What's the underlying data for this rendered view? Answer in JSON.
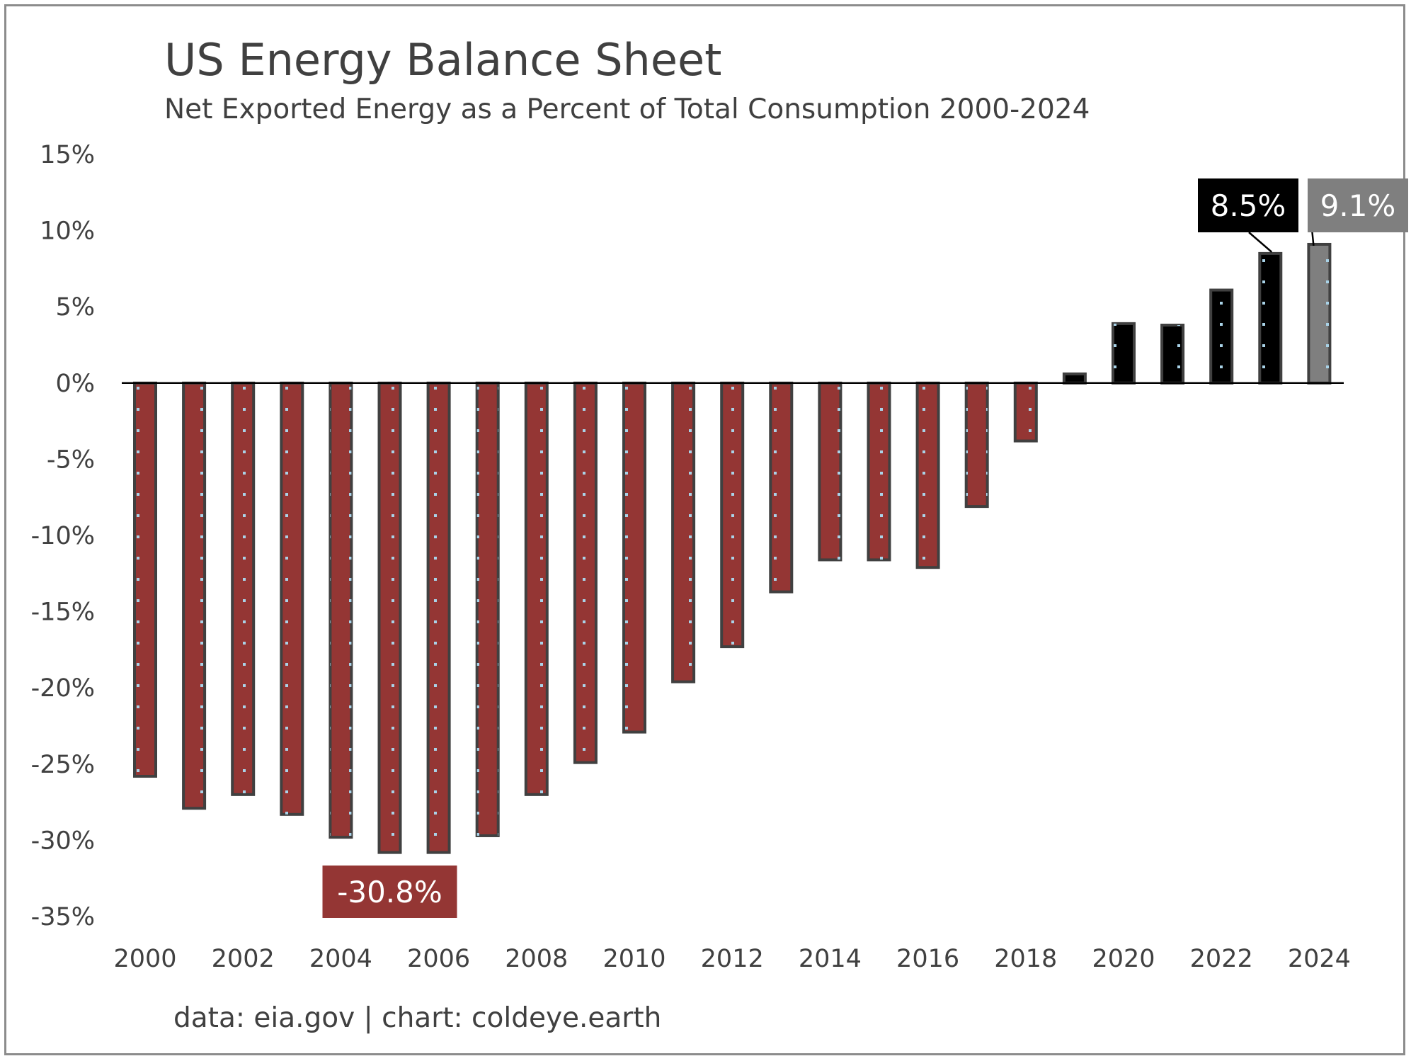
{
  "chart_data": {
    "type": "bar",
    "title": "US Energy Balance Sheet",
    "subtitle": "Net Exported Energy as a Percent of Total Consumption 2000-2024",
    "source": "data: eia.gov | chart: coldeye.earth",
    "categories": [
      "2000",
      "2001",
      "2002",
      "2003",
      "2004",
      "2005",
      "2006",
      "2007",
      "2008",
      "2009",
      "2010",
      "2011",
      "2012",
      "2013",
      "2014",
      "2015",
      "2016",
      "2017",
      "2018",
      "2019",
      "2020",
      "2021",
      "2022",
      "2023",
      "2024"
    ],
    "values": [
      -25.8,
      -27.9,
      -27.0,
      -28.3,
      -29.8,
      -30.8,
      -30.8,
      -29.7,
      -27.0,
      -24.9,
      -22.9,
      -19.6,
      -17.3,
      -13.7,
      -11.6,
      -11.6,
      -12.1,
      -8.1,
      -3.8,
      0.6,
      3.9,
      3.8,
      6.1,
      8.5,
      9.1
    ],
    "xtick_labels": [
      "2000",
      "2002",
      "2004",
      "2006",
      "2008",
      "2010",
      "2012",
      "2014",
      "2016",
      "2018",
      "2020",
      "2022",
      "2024"
    ],
    "ytick_labels": [
      "15%",
      "10%",
      "5%",
      "0%",
      "-5%",
      "-10%",
      "-15%",
      "-20%",
      "-25%",
      "-30%",
      "-35%"
    ],
    "ylim": [
      -35,
      15
    ],
    "ystep": 5,
    "grid": false,
    "legend": "none",
    "colors": {
      "negative": "#943634",
      "positive": "#000000",
      "latest": "#7f7f7f",
      "outline": "#404040",
      "dots": "#a9d3e8"
    },
    "annotations": [
      {
        "category": "2005",
        "text": "-30.8%",
        "color": "#943634"
      },
      {
        "category": "2023",
        "text": "8.5%",
        "color": "#000000"
      },
      {
        "category": "2024",
        "text": "9.1%",
        "color": "#7f7f7f"
      }
    ]
  }
}
